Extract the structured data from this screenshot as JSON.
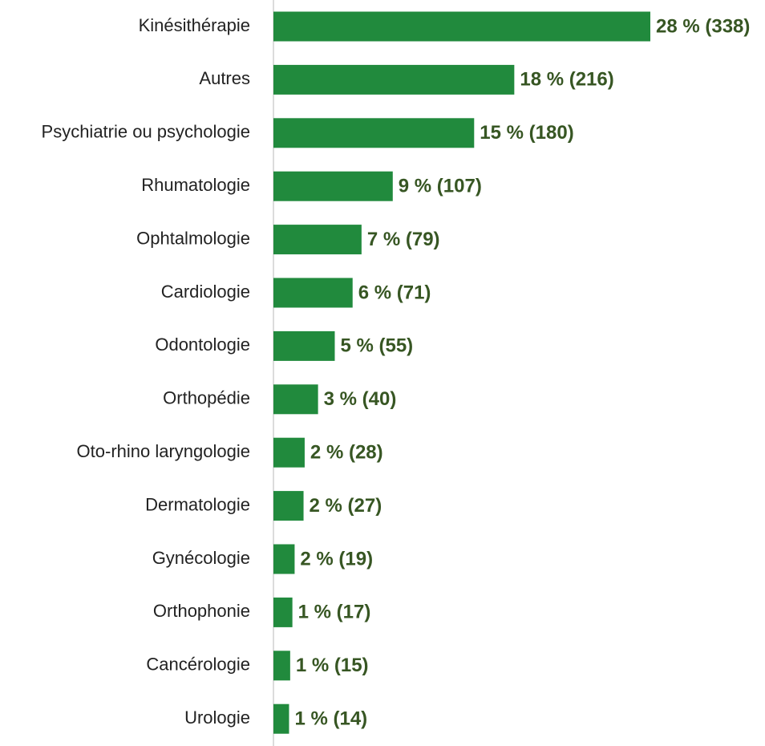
{
  "chart_data": {
    "type": "hbar",
    "categories": [
      "Kinésithérapie",
      "Autres",
      "Psychiatrie ou psychologie",
      "Rhumatologie",
      "Ophtalmologie",
      "Cardiologie",
      "Odontologie",
      "Orthopédie",
      "Oto-rhino laryngologie",
      "Dermatologie",
      "Gynécologie",
      "Orthophonie",
      "Cancérologie",
      "Urologie"
    ],
    "values": [
      338,
      216,
      180,
      107,
      79,
      71,
      55,
      40,
      28,
      27,
      19,
      17,
      15,
      14
    ],
    "value_labels": [
      "28 % (338)",
      "18 % (216)",
      "15 % (180)",
      "9 % (107)",
      "7 % (79)",
      "6 % (71)",
      "5 % (55)",
      "3 % (40)",
      "2 % (28)",
      "2 % (27)",
      "2 % (19)",
      "1 % (17)",
      "1 % (15)",
      "1 % (14)"
    ],
    "color": "#218a3d",
    "label_color": "#375623"
  }
}
